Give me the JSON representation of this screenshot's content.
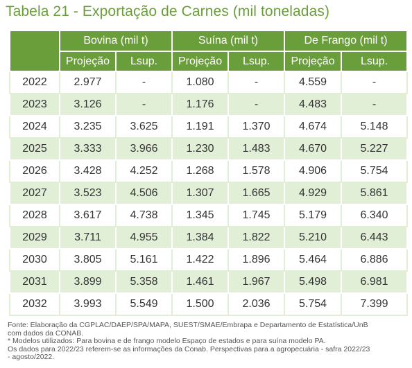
{
  "title": "Tabela 21 - Exportação de Carnes (mil toneladas)",
  "groups": [
    "Bovina (mil t)",
    "Suína (mil t)",
    "De Frango (mil t)"
  ],
  "subheaders": [
    "Projeção",
    "Lsup.",
    "Projeção",
    "Lsup.",
    "Projeção",
    "Lsup."
  ],
  "rows": [
    [
      "2022",
      "2.977",
      "-",
      "1.080",
      "-",
      "4.559",
      "-"
    ],
    [
      "2023",
      "3.126",
      "-",
      "1.176",
      "-",
      "4.483",
      "-"
    ],
    [
      "2024",
      "3.235",
      "3.625",
      "1.191",
      "1.370",
      "4.674",
      "5.148"
    ],
    [
      "2025",
      "3.333",
      "3.966",
      "1.230",
      "1.483",
      "4.670",
      "5.227"
    ],
    [
      "2026",
      "3.428",
      "4.252",
      "1.268",
      "1.578",
      "4.906",
      "5.754"
    ],
    [
      "2027",
      "3.523",
      "4.506",
      "1.307",
      "1.665",
      "4.929",
      "5.861"
    ],
    [
      "2028",
      "3.617",
      "4.738",
      "1.345",
      "1.745",
      "5.179",
      "6.340"
    ],
    [
      "2029",
      "3.711",
      "4.955",
      "1.384",
      "1.822",
      "5.210",
      "6.443"
    ],
    [
      "2030",
      "3.805",
      "5.161",
      "1.422",
      "1.896",
      "5.464",
      "6.886"
    ],
    [
      "2031",
      "3.899",
      "5.358",
      "1.461",
      "1.967",
      "5.498",
      "6.981"
    ],
    [
      "2032",
      "3.993",
      "5.549",
      "1.500",
      "2.036",
      "5.754",
      "7.399"
    ]
  ],
  "footer": [
    "Fonte: Elaboração da CGPLAC/DAEP/SPA/MAPA, SUEST/SMAE/Embrapa e Departamento de Estatística/UnB",
    "com dados da CONAB.",
    "* Modelos utilizados: Para bovina e de frango modelo Espaço de estados e para suína modelo PA.",
    "Os dados para 2022/23 referem-se as informações da Conab. Perspectivas para a agropecuária - safra 2022/23",
    "- agosto/2022."
  ]
}
